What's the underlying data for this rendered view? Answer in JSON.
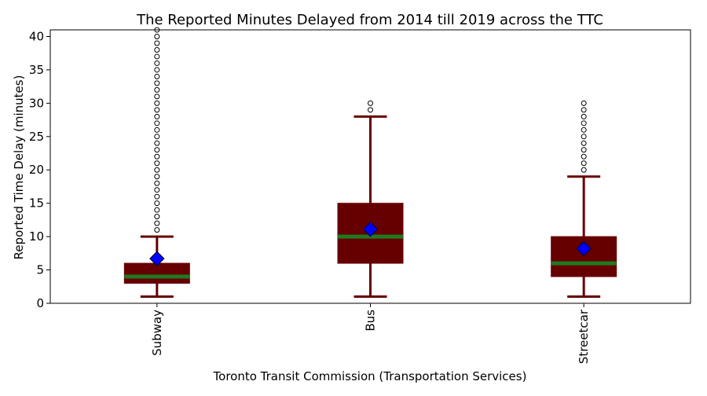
{
  "chart_data": {
    "type": "box",
    "title": "The Reported Minutes Delayed from 2014 till 2019 across the TTC",
    "xlabel": "Toronto Transit Commission (Transportation Services)",
    "ylabel": "Reported Time Delay (minutes)",
    "ylim": [
      0,
      41
    ],
    "yticks": [
      0,
      5,
      10,
      15,
      20,
      25,
      30,
      35,
      40
    ],
    "categories": [
      "Subway",
      "Bus",
      "Streetcar"
    ],
    "boxes": [
      {
        "name": "Subway",
        "whisker_low": 1,
        "q1": 3,
        "median": 4,
        "q3": 6,
        "whisker_high": 10,
        "mean": 6.7,
        "outliers": [
          11,
          12,
          13,
          14,
          15,
          16,
          17,
          18,
          19,
          20,
          21,
          22,
          23,
          24,
          25,
          26,
          27,
          28,
          29,
          30,
          31,
          32,
          33,
          34,
          35,
          36,
          37,
          38,
          39,
          40,
          41
        ]
      },
      {
        "name": "Bus",
        "whisker_low": 1,
        "q1": 6,
        "median": 10,
        "q3": 15,
        "whisker_high": 28,
        "mean": 11.1,
        "outliers": [
          29,
          30
        ]
      },
      {
        "name": "Streetcar",
        "whisker_low": 1,
        "q1": 4,
        "median": 6,
        "q3": 10,
        "whisker_high": 19,
        "mean": 8.2,
        "outliers": [
          20,
          21,
          22,
          23,
          24,
          25,
          26,
          27,
          28,
          29,
          30
        ]
      }
    ],
    "colors": {
      "box": "#660000",
      "median": "#1f7a1f",
      "mean_marker": "#0000ff",
      "whisker": "#660000"
    },
    "grid": false
  }
}
